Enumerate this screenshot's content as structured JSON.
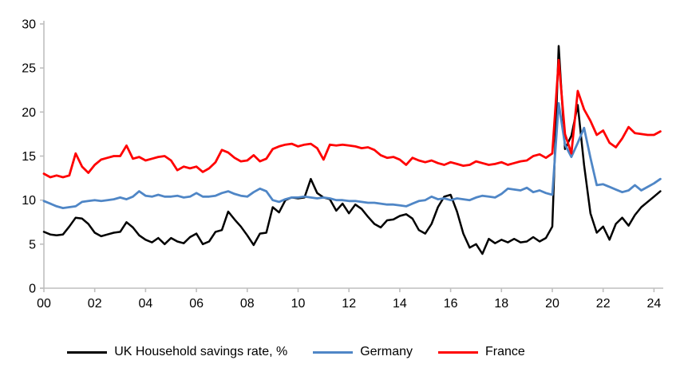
{
  "chart_data": {
    "type": "line",
    "title": "",
    "xlabel": "",
    "ylabel": "",
    "ylim": [
      0,
      30
    ],
    "y_tick_labels": [
      "0",
      "5",
      "10",
      "15",
      "20",
      "25",
      "30"
    ],
    "x_tick_labels": [
      "00",
      "02",
      "04",
      "06",
      "08",
      "10",
      "12",
      "14",
      "16",
      "18",
      "20",
      "22",
      "24"
    ],
    "x_start_year": 2000,
    "x_step_years": 0.25,
    "x_unit": "quarterly, 2000Q1 - 2024Q2",
    "grid": "off",
    "legend_position": "bottom",
    "axis_color": "#BFBFBF",
    "series": [
      {
        "name": "UK Household savings rate, %",
        "color": "#000000",
        "values": [
          6.4,
          6.1,
          6.0,
          6.1,
          7.0,
          8.0,
          7.9,
          7.3,
          6.3,
          5.9,
          6.1,
          6.3,
          6.4,
          7.5,
          6.9,
          6.0,
          5.5,
          5.2,
          5.7,
          5.0,
          5.7,
          5.3,
          5.1,
          5.8,
          6.2,
          5.0,
          5.3,
          6.4,
          6.6,
          8.7,
          7.8,
          7.0,
          6.0,
          4.9,
          6.2,
          6.3,
          9.2,
          8.6,
          10.0,
          10.3,
          10.2,
          10.3,
          12.4,
          10.8,
          10.3,
          10.1,
          8.8,
          9.6,
          8.5,
          9.5,
          9.0,
          8.1,
          7.3,
          6.9,
          7.7,
          7.8,
          8.2,
          8.4,
          7.9,
          6.6,
          6.2,
          7.3,
          9.2,
          10.4,
          10.6,
          8.7,
          6.2,
          4.6,
          5.0,
          3.9,
          5.6,
          5.1,
          5.5,
          5.2,
          5.6,
          5.2,
          5.3,
          5.8,
          5.3,
          5.7,
          7.0,
          27.5,
          15.8,
          17.3,
          20.8,
          14.0,
          8.5,
          6.3,
          7.0,
          5.5,
          7.3,
          8.0,
          7.1,
          8.3,
          9.2,
          9.8,
          10.4,
          11.0
        ]
      },
      {
        "name": "Germany",
        "color": "#4F86C6",
        "values": [
          9.9,
          9.6,
          9.3,
          9.1,
          9.2,
          9.3,
          9.8,
          9.9,
          10.0,
          9.9,
          10.0,
          10.1,
          10.3,
          10.1,
          10.4,
          11.0,
          10.5,
          10.4,
          10.6,
          10.4,
          10.4,
          10.5,
          10.3,
          10.4,
          10.8,
          10.4,
          10.4,
          10.5,
          10.8,
          11.0,
          10.7,
          10.5,
          10.4,
          10.9,
          11.3,
          11.0,
          10.0,
          9.8,
          10.1,
          10.3,
          10.3,
          10.4,
          10.3,
          10.2,
          10.3,
          10.2,
          10.0,
          10.0,
          9.9,
          9.9,
          9.8,
          9.7,
          9.7,
          9.6,
          9.5,
          9.5,
          9.4,
          9.3,
          9.6,
          9.9,
          10.0,
          10.4,
          10.1,
          10.2,
          10.0,
          10.2,
          10.1,
          10.0,
          10.3,
          10.5,
          10.4,
          10.3,
          10.7,
          11.3,
          11.2,
          11.1,
          11.4,
          10.9,
          11.1,
          10.8,
          10.6,
          21.0,
          16.3,
          14.9,
          16.5,
          18.2,
          14.8,
          11.7,
          11.8,
          11.5,
          11.2,
          10.9,
          11.1,
          11.7,
          11.1,
          11.5,
          11.9,
          12.4
        ]
      },
      {
        "name": "France",
        "color": "#FF0000",
        "values": [
          13.0,
          12.6,
          12.8,
          12.6,
          12.8,
          15.3,
          13.8,
          13.1,
          14.0,
          14.6,
          14.8,
          15.0,
          15.0,
          16.2,
          14.7,
          14.9,
          14.5,
          14.7,
          14.9,
          15.0,
          14.5,
          13.4,
          13.8,
          13.6,
          13.8,
          13.2,
          13.6,
          14.3,
          15.7,
          15.4,
          14.8,
          14.4,
          14.5,
          15.1,
          14.4,
          14.7,
          15.8,
          16.1,
          16.3,
          16.4,
          16.1,
          16.3,
          16.4,
          15.9,
          14.6,
          16.3,
          16.2,
          16.3,
          16.2,
          16.1,
          15.9,
          16.0,
          15.7,
          15.1,
          14.8,
          14.9,
          14.6,
          14.0,
          14.8,
          14.5,
          14.3,
          14.5,
          14.2,
          14.0,
          14.3,
          14.1,
          13.9,
          14.0,
          14.4,
          14.2,
          14.0,
          14.1,
          14.3,
          14.0,
          14.2,
          14.4,
          14.5,
          15.0,
          15.2,
          14.8,
          15.3,
          25.9,
          17.5,
          15.3,
          22.4,
          20.3,
          19.0,
          17.4,
          17.9,
          16.5,
          16.0,
          17.0,
          18.3,
          17.6,
          17.5,
          17.4,
          17.4,
          17.8
        ]
      }
    ]
  },
  "legend": {
    "uk_label": "UK Household savings rate, %",
    "germany_label": "Germany",
    "france_label": "France"
  }
}
